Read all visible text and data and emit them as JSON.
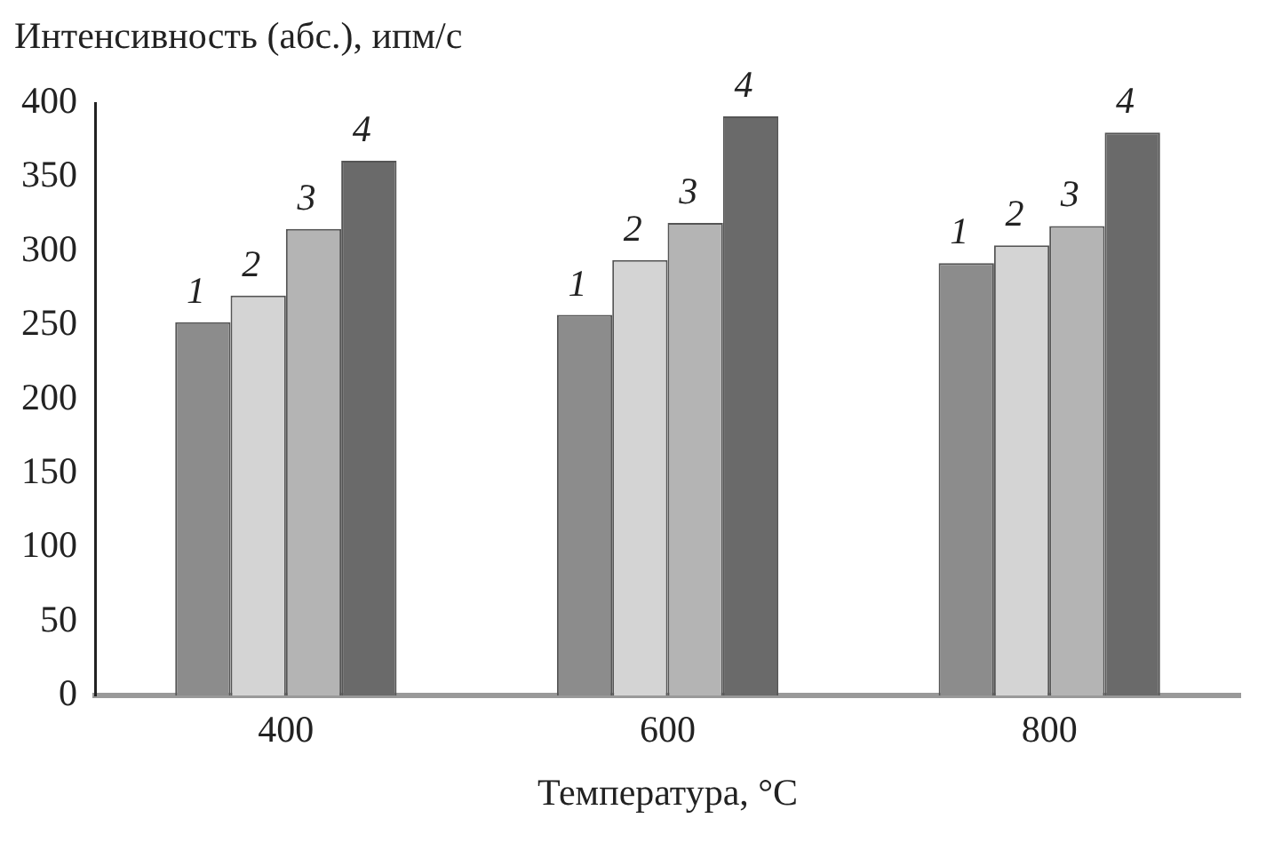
{
  "chart_data": {
    "type": "bar",
    "ylabel": "Интенсивность (абс.), ипм/с",
    "xlabel": "Температура, °C",
    "categories": [
      "400",
      "600",
      "800"
    ],
    "series": [
      {
        "name": "1",
        "color": "#8c8c8c",
        "values": [
          252,
          257,
          292
        ]
      },
      {
        "name": "2",
        "color": "#d4d4d4",
        "values": [
          270,
          294,
          304
        ]
      },
      {
        "name": "3",
        "color": "#b4b4b4",
        "values": [
          315,
          319,
          317
        ]
      },
      {
        "name": "4",
        "color": "#6a6a6a",
        "values": [
          361,
          391,
          380
        ]
      }
    ],
    "ylim": [
      0,
      400
    ],
    "yticks": [
      0,
      50,
      100,
      150,
      200,
      250,
      300,
      350,
      400
    ],
    "grid": false,
    "legend": false
  }
}
